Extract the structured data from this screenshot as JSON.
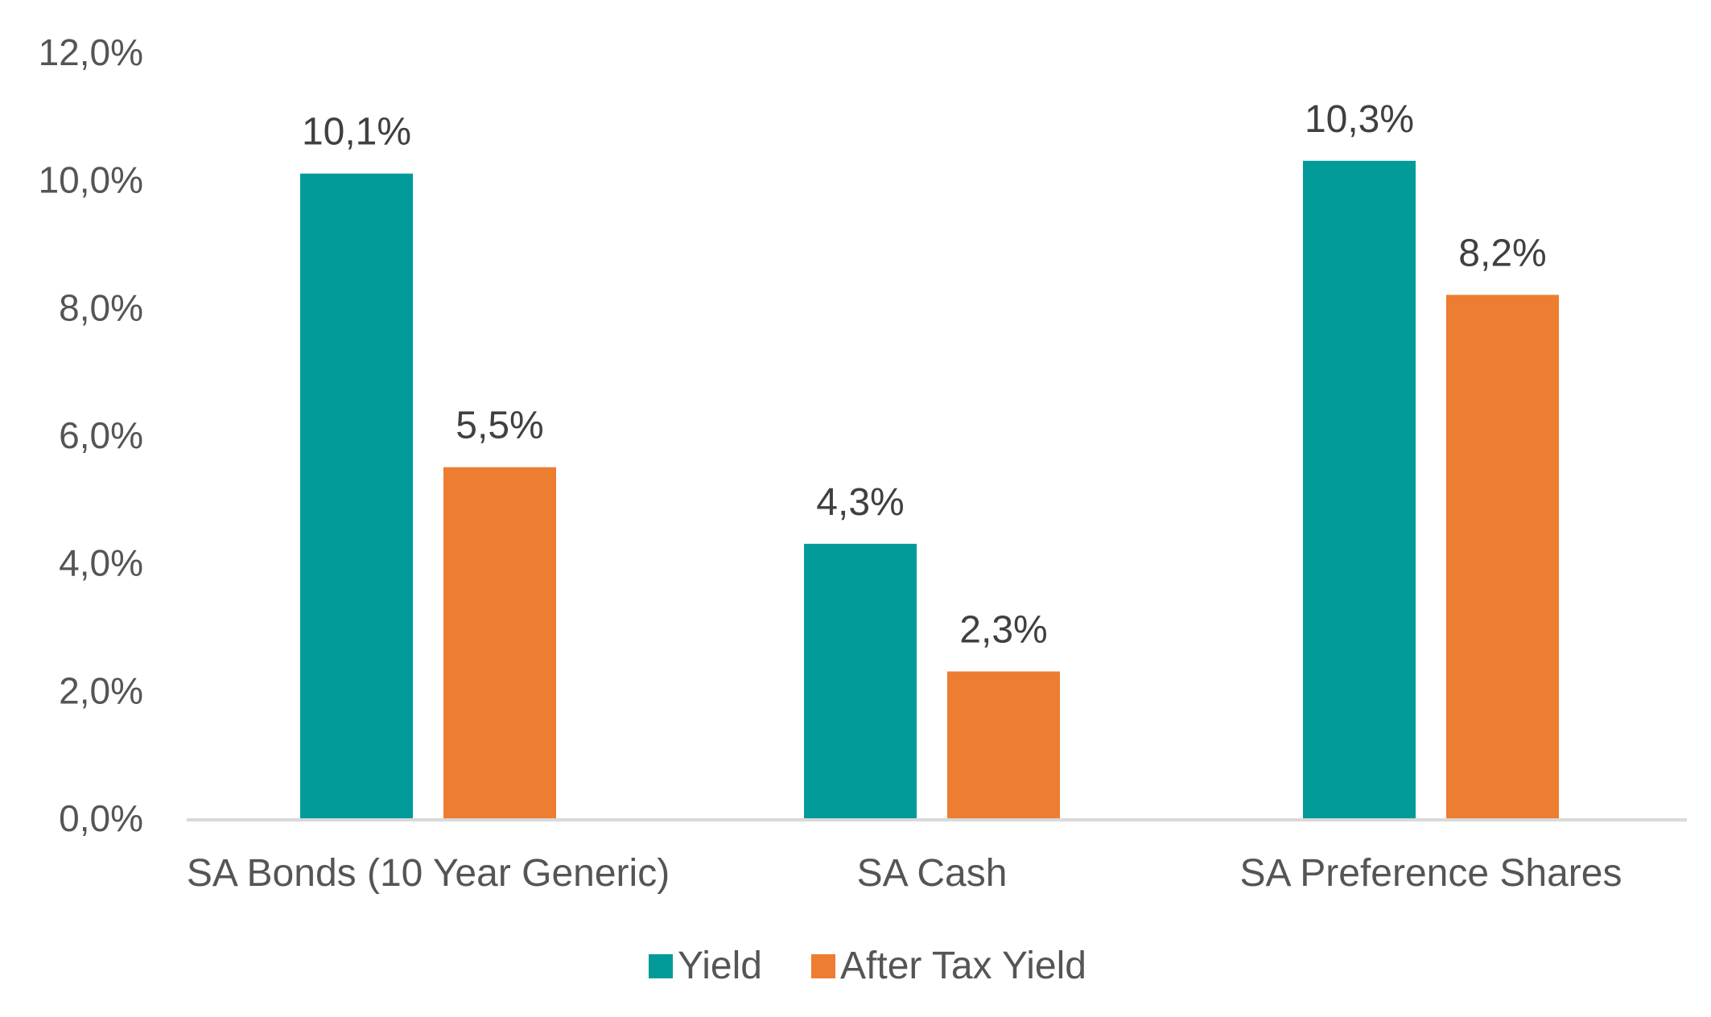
{
  "chart_data": {
    "type": "bar",
    "title": "",
    "xlabel": "",
    "ylabel": "",
    "categories": [
      "SA Bonds (10 Year Generic)",
      "SA Cash",
      "SA Preference Shares"
    ],
    "series": [
      {
        "name": "Yield",
        "color": "#029b99",
        "values": [
          10.1,
          4.3,
          10.3
        ],
        "labels": [
          "10,1%",
          "4,3%",
          "10,3%"
        ]
      },
      {
        "name": "After Tax Yield",
        "color": "#ed7d31",
        "values": [
          5.5,
          2.3,
          8.2
        ],
        "labels": [
          "5,5%",
          "2,3%",
          "8,2%"
        ]
      }
    ],
    "ylim": [
      0,
      12
    ],
    "yticks": [
      0,
      2,
      4,
      6,
      8,
      10,
      12
    ],
    "ytick_labels": [
      "0,0%",
      "2,0%",
      "4,0%",
      "6,0%",
      "8,0%",
      "10,0%",
      "12,0%"
    ],
    "grid": false,
    "legend": {
      "position": "bottom-center",
      "entries": [
        "Yield",
        "After Tax Yield"
      ]
    },
    "axis_color": "#d9d9d9"
  }
}
